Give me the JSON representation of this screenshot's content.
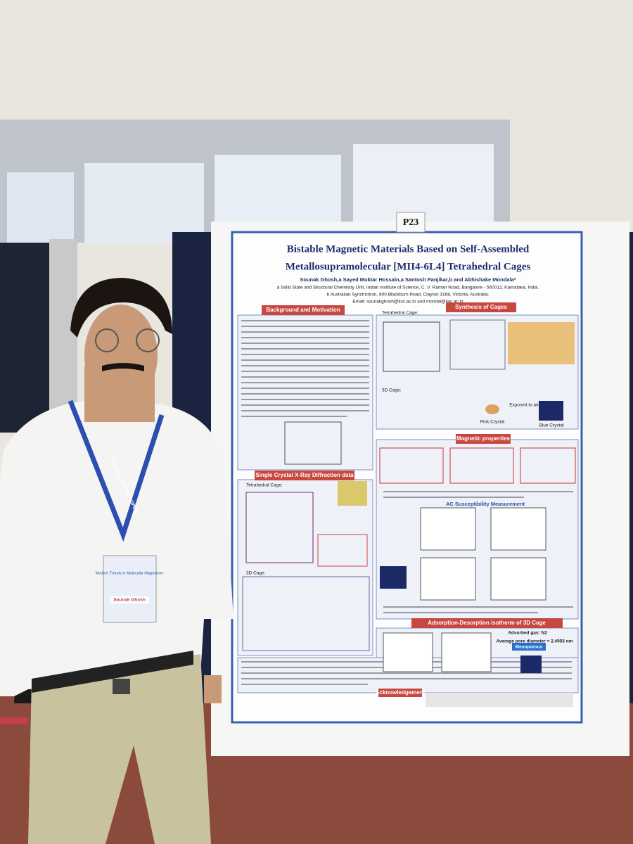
{
  "poster_number": "P23",
  "poster": {
    "title_line1": "Bistable Magnetic Materials Based on Self-Assembled",
    "title_line2": "Metallosupramolecular [MII4-6L4] Tetrahedral Cages",
    "authors": "Sounak Ghosh,a Sayed Muktar Hossain,a Santosh Panjikar,b and Abhishake Mondala*",
    "affiliation_a": "a Solid State and Structural Chemistry Unit, Indian Institute of Science, C. V. Raman Road, Bangalore - 560012, Karnataka, India.",
    "affiliation_b": "b Australian Synchrotron, 800 Blackburn Road, Clayton 3168, Victoria, Australia.",
    "email": "Email: sounakghosh@iisc.ac.in and mondal@iisc.ac.in",
    "sections": {
      "background": "Background and Motivation",
      "synthesis": "Synthesis of Cages",
      "magnetic": "Magnetic properties",
      "xray": "Single Crystal X-Ray Diffraction data",
      "ac": "AC Susceptibility Measurement",
      "adsorption": "Adsorption-Desorption isotherm of 3D Cage",
      "acknowledgement": "Acknowledgement"
    },
    "labels": {
      "tetrahedral_cage": "Tetrahedral Cage:",
      "cage_3d": "3D Cage:",
      "pink_crystal": "Pink Crystal",
      "blue_crystal": "Blue Crystal",
      "exposed": "Exposed to air",
      "adsorbed_gas": "Adsorbed gas: N2",
      "pore_diameter": "Average pore diameter = 2.4955 nm",
      "mesoporous": "Mesoporous"
    }
  },
  "lanyard": "Chemistry IIT KHARAGPUR",
  "badge": {
    "event": "Modern Trends in Molecular Magnetism",
    "name": "Sounak Ghosh"
  }
}
